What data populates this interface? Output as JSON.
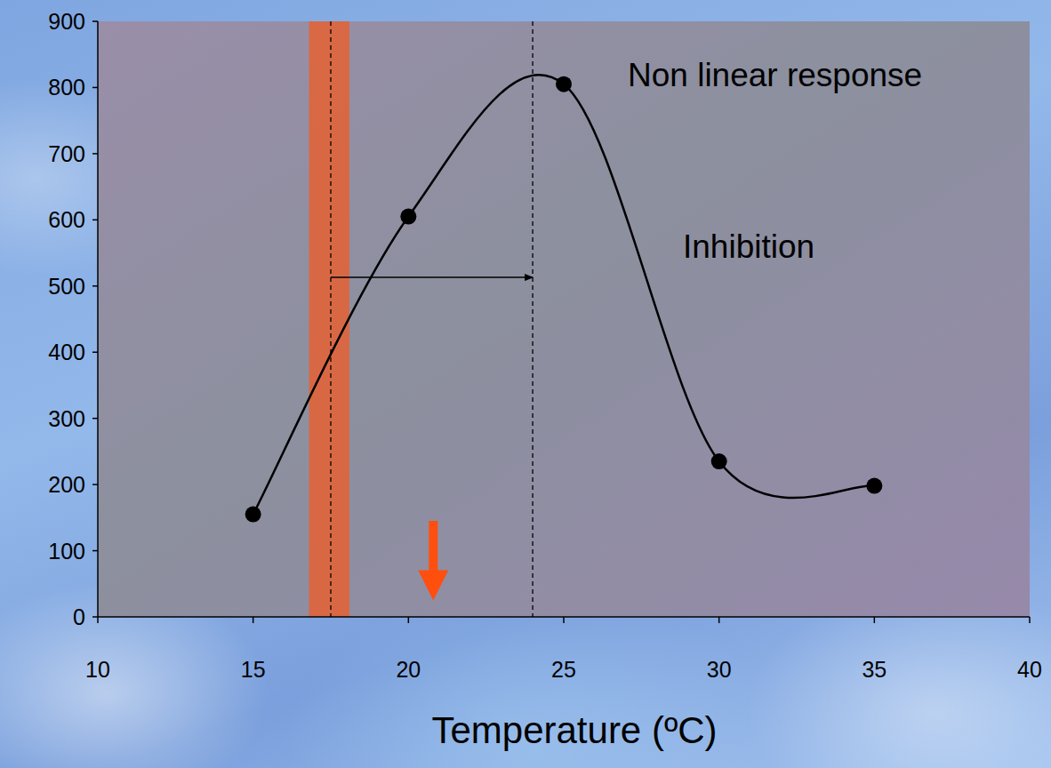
{
  "chart_data": {
    "type": "line",
    "x_label": "Temperature (ºC)",
    "annotations": [
      "Non linear response",
      "Inhibition"
    ],
    "x": [
      15,
      20,
      25,
      30,
      35
    ],
    "values": [
      155,
      605,
      805,
      235,
      198
    ],
    "color": "#000000",
    "marker": "circle",
    "line_style": "solid",
    "xlim": [
      10,
      40
    ],
    "xticks": [
      10,
      15,
      20,
      25,
      30,
      35,
      40
    ],
    "ylim": [
      0,
      900
    ],
    "yticks": [
      0,
      100,
      200,
      300,
      400,
      500,
      600,
      700,
      800,
      900
    ],
    "grid": false,
    "band": [
      16.8,
      18.1
    ],
    "vlines": [
      17.5,
      24
    ],
    "shift_arrow": {
      "from": 17.5,
      "to": 24,
      "y": 513
    },
    "down_arrow": {
      "x": 20.8,
      "y": [
        145,
        25
      ]
    }
  }
}
